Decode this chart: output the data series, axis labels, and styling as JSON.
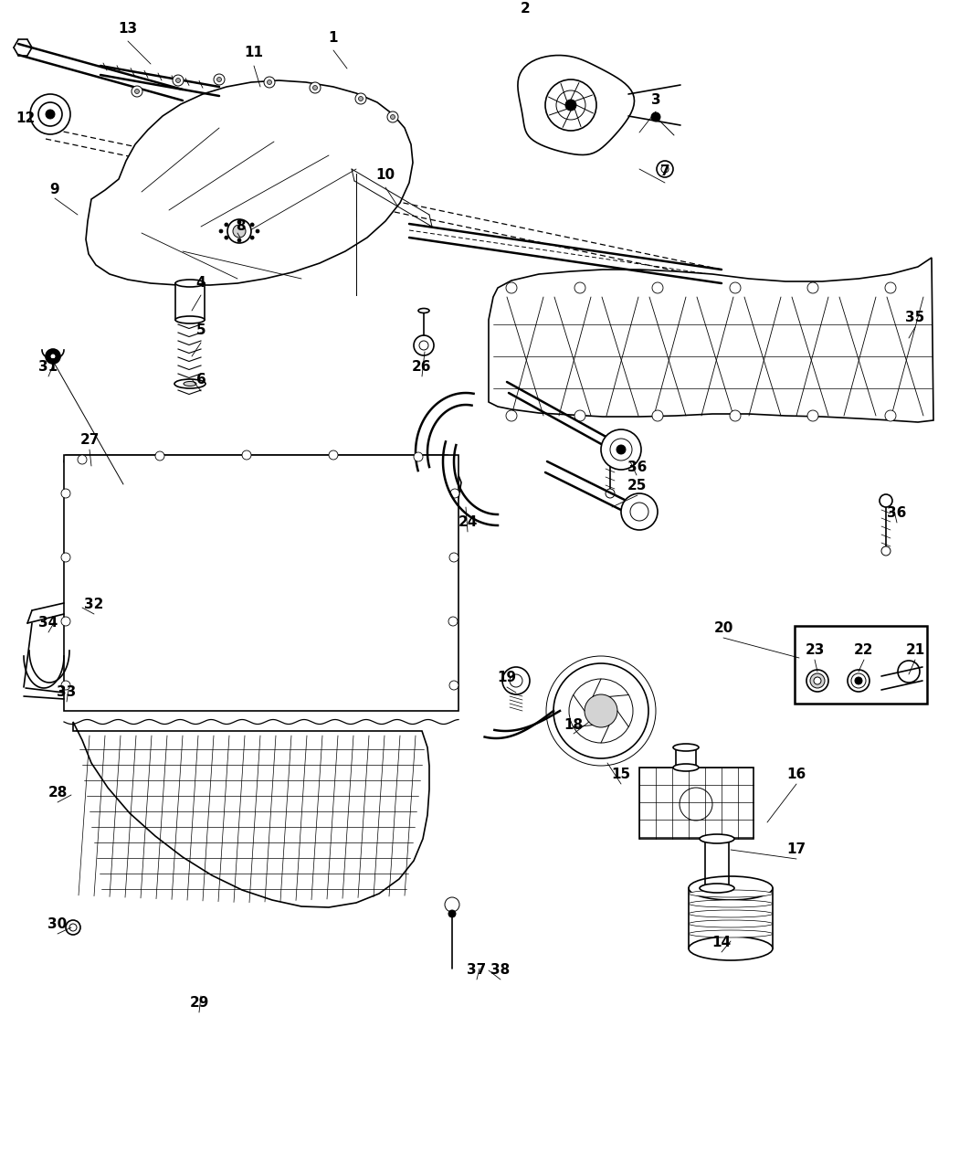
{
  "bg_color": "#ffffff",
  "figsize": [
    10.5,
    12.75
  ],
  "dpi": 100,
  "label_fontsize": 11,
  "label_fontweight": "bold",
  "labels": [
    [
      "1",
      365,
      42
    ],
    [
      "2",
      575,
      10
    ],
    [
      "3",
      718,
      110
    ],
    [
      "4",
      220,
      310
    ],
    [
      "5",
      220,
      362
    ],
    [
      "6",
      220,
      415
    ],
    [
      "7",
      728,
      188
    ],
    [
      "8",
      263,
      248
    ],
    [
      "9",
      60,
      207
    ],
    [
      "10",
      422,
      192
    ],
    [
      "11",
      278,
      58
    ],
    [
      "12",
      28,
      130
    ],
    [
      "13",
      140,
      32
    ],
    [
      "14",
      790,
      1032
    ],
    [
      "15",
      680,
      848
    ],
    [
      "16",
      872,
      848
    ],
    [
      "17",
      872,
      930
    ],
    [
      "18",
      628,
      793
    ],
    [
      "19",
      555,
      742
    ],
    [
      "20",
      792,
      688
    ],
    [
      "21",
      1002,
      712
    ],
    [
      "22",
      946,
      712
    ],
    [
      "23",
      892,
      712
    ],
    [
      "24",
      512,
      572
    ],
    [
      "25",
      697,
      532
    ],
    [
      "26",
      462,
      402
    ],
    [
      "27",
      98,
      482
    ],
    [
      "28",
      63,
      868
    ],
    [
      "29",
      218,
      1098
    ],
    [
      "30",
      63,
      1012
    ],
    [
      "31",
      53,
      402
    ],
    [
      "32",
      103,
      662
    ],
    [
      "33",
      73,
      758
    ],
    [
      "34",
      53,
      682
    ],
    [
      "35",
      1002,
      348
    ],
    [
      "36",
      698,
      512
    ],
    [
      "36",
      982,
      562
    ],
    [
      "37",
      522,
      1062
    ],
    [
      "38",
      548,
      1062
    ]
  ]
}
